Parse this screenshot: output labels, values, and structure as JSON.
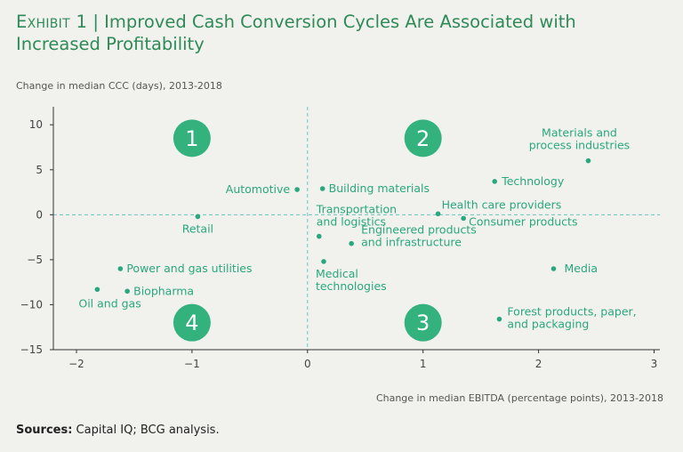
{
  "header": {
    "exhibit": "Exhibit 1",
    "separator": " | ",
    "title": "Improved Cash Conversion Cycles Are Associated with Increased Profitability"
  },
  "footer": {
    "sources_label": "Sources:",
    "sources_text": " Capital IQ; BCG analysis."
  },
  "colors": {
    "accent": "#2aa77e",
    "title": "#2e8b57",
    "quadrant": "#34b27e",
    "axis": "#333333",
    "reference": "#6cc3c6",
    "background": "#f1f1ed"
  },
  "chart_data": {
    "type": "scatter",
    "xlabel": "Change in median EBITDA (percentage points), 2013-2018",
    "ylabel": "Change in median CCC (days), 2013-2018",
    "xlim": [
      -2.2,
      3.05
    ],
    "ylim": [
      -15,
      12
    ],
    "xticks": [
      -2,
      -1,
      0,
      1,
      2,
      3
    ],
    "yticks": [
      10,
      5,
      0,
      -5,
      -10,
      -15
    ],
    "x_tick_labels": [
      "−2",
      "−1",
      "0",
      "1",
      "2",
      "3"
    ],
    "y_tick_labels": [
      "10",
      "5",
      "0",
      "−5",
      "−10",
      "−15"
    ],
    "grid": false,
    "reference_lines": {
      "x": 0,
      "y": 0
    },
    "quadrants": [
      {
        "label": "1",
        "x": -1.0,
        "y": 8.5
      },
      {
        "label": "2",
        "x": 1.0,
        "y": 8.5
      },
      {
        "label": "3",
        "x": 1.0,
        "y": -12.0
      },
      {
        "label": "4",
        "x": -1.0,
        "y": -12.0
      }
    ],
    "points": [
      {
        "label": [
          "Materials and",
          "process industries"
        ],
        "x": 2.43,
        "y": 6.0
      },
      {
        "label": [
          "Technology"
        ],
        "x": 1.62,
        "y": 3.7
      },
      {
        "label": [
          "Automotive"
        ],
        "x": -0.09,
        "y": 2.8
      },
      {
        "label": [
          "Building materials"
        ],
        "x": 0.13,
        "y": 2.9
      },
      {
        "label": [
          "Health care providers"
        ],
        "x": 1.13,
        "y": 0.1
      },
      {
        "label": [
          "Consumer products"
        ],
        "x": 1.35,
        "y": -0.4
      },
      {
        "label": [
          "Retail"
        ],
        "x": -0.95,
        "y": -0.2
      },
      {
        "label": [
          "Transportation",
          "and logistics"
        ],
        "x": 0.1,
        "y": -2.4
      },
      {
        "label": [
          "Engineered products",
          "and infrastructure"
        ],
        "x": 0.38,
        "y": -3.2
      },
      {
        "label": [
          "Medical",
          "technologies"
        ],
        "x": 0.14,
        "y": -5.2
      },
      {
        "label": [
          "Media"
        ],
        "x": 2.13,
        "y": -6.0
      },
      {
        "label": [
          "Power and gas utilities"
        ],
        "x": -1.62,
        "y": -6.0
      },
      {
        "label": [
          "Biopharma"
        ],
        "x": -1.56,
        "y": -8.5
      },
      {
        "label": [
          "Oil and gas"
        ],
        "x": -1.82,
        "y": -8.3
      },
      {
        "label": [
          "Forest products, paper,",
          "and packaging"
        ],
        "x": 1.66,
        "y": -11.6
      }
    ]
  }
}
